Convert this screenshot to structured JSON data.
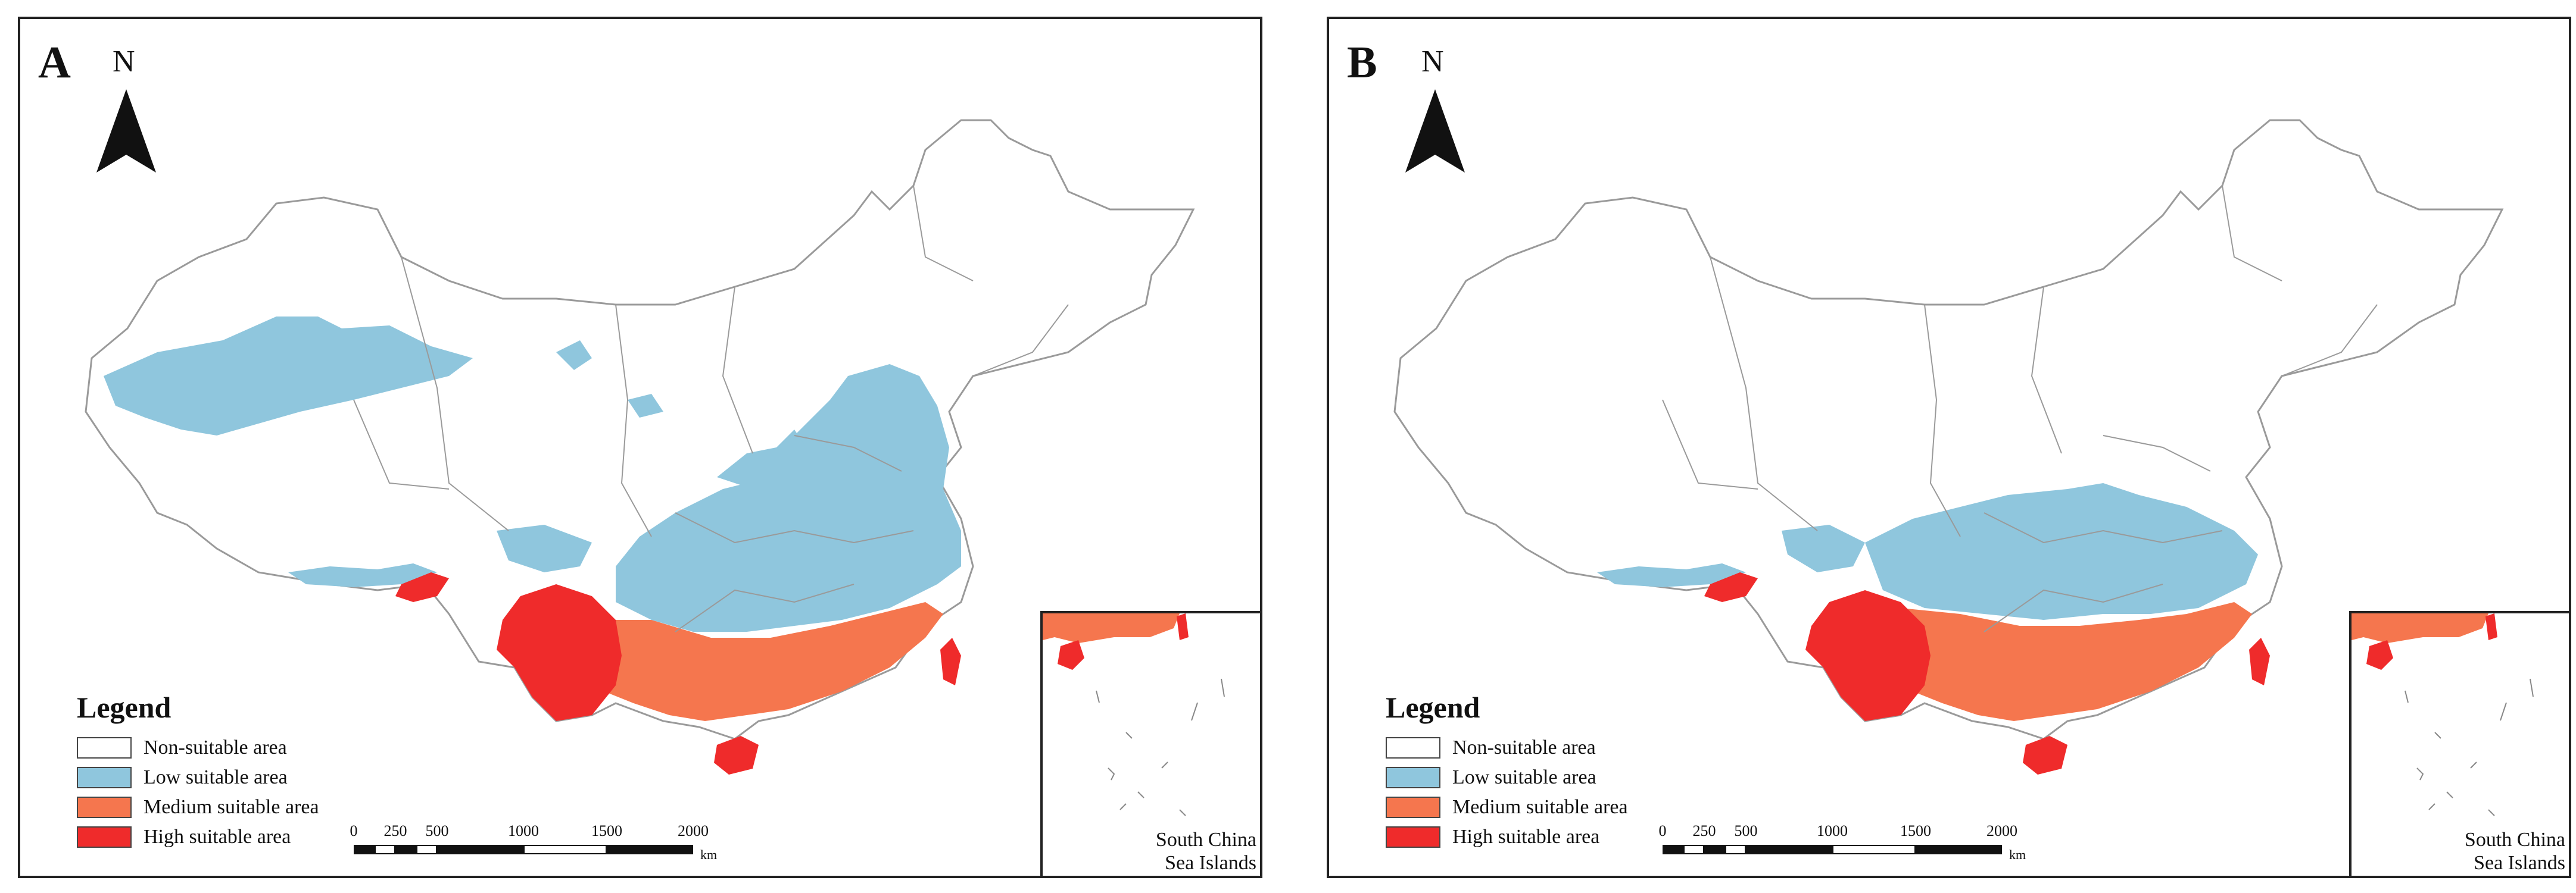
{
  "colors": {
    "non_suitable": "#ffffff",
    "low_suitable": "#8fc6dd",
    "medium_suitable": "#f5764e",
    "high_suitable": "#ef2b2b",
    "boundary": "#9a9a9a"
  },
  "legend": {
    "title": "Legend",
    "items": [
      {
        "label": "Non-suitable area",
        "color": "#ffffff"
      },
      {
        "label": "Low suitable area",
        "color": "#8fc6dd"
      },
      {
        "label": "Medium suitable area",
        "color": "#f5764e"
      },
      {
        "label": "High suitable area",
        "color": "#ef2b2b"
      }
    ]
  },
  "north_label": "N",
  "scale": {
    "ticks": [
      "0",
      "250",
      "500",
      "1000",
      "1500",
      "2000"
    ],
    "unit": "km"
  },
  "inset": {
    "line1": "South China",
    "line2": "Sea Islands"
  },
  "panels": [
    {
      "letter": "A"
    },
    {
      "letter": "B"
    }
  ]
}
